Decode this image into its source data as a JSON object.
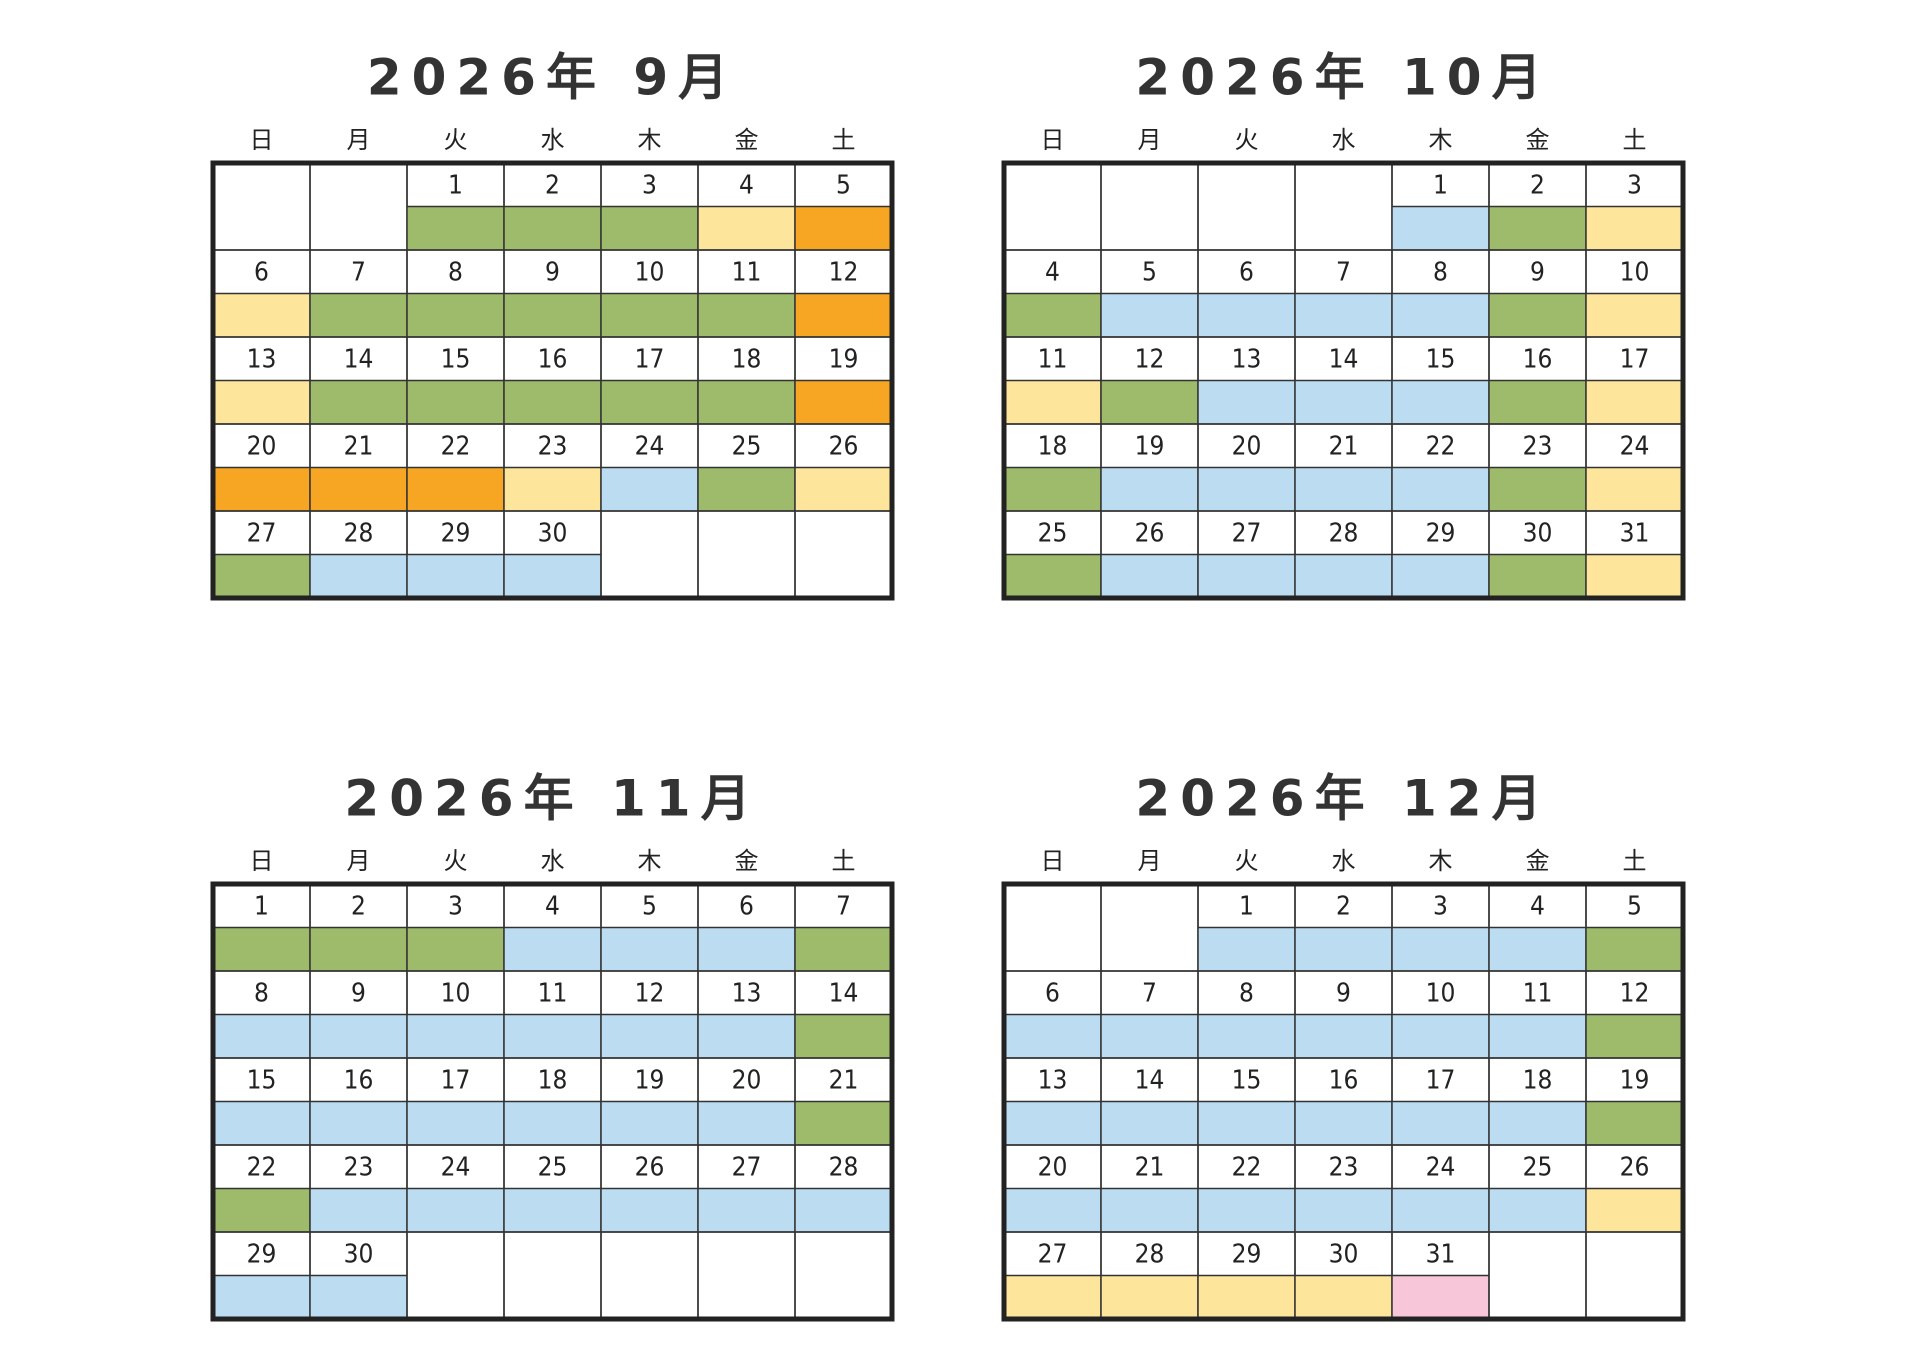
{
  "months": [
    {
      "title": "2026年 9月",
      "weekdays": [
        "日",
        "月",
        "火",
        "水",
        "木",
        "金",
        "土"
      ],
      "weeks": [
        [
          null,
          null,
          {
            "day": 1,
            "fill": "#9dbb6b"
          },
          {
            "day": 2,
            "fill": "#9dbb6b"
          },
          {
            "day": 3,
            "fill": "#9dbb6b"
          },
          {
            "day": 4,
            "fill": "#fde59b"
          },
          {
            "day": 5,
            "fill": "#f6a623",
            "text_color": "#1e88c7"
          }
        ],
        [
          {
            "day": 6,
            "fill": "#fde59b",
            "text_color": "#d7263d"
          },
          {
            "day": 7,
            "fill": "#9dbb6b"
          },
          {
            "day": 8,
            "fill": "#9dbb6b"
          },
          {
            "day": 9,
            "fill": "#9dbb6b"
          },
          {
            "day": 10,
            "fill": "#9dbb6b"
          },
          {
            "day": 11,
            "fill": "#9dbb6b"
          },
          {
            "day": 12,
            "fill": "#f6a623",
            "text_color": "#1e88c7"
          }
        ],
        [
          {
            "day": 13,
            "fill": "#fde59b",
            "text_color": "#d7263d"
          },
          {
            "day": 14,
            "fill": "#9dbb6b"
          },
          {
            "day": 15,
            "fill": "#9dbb6b"
          },
          {
            "day": 16,
            "fill": "#9dbb6b"
          },
          {
            "day": 17,
            "fill": "#9dbb6b"
          },
          {
            "day": 18,
            "fill": "#9dbb6b"
          },
          {
            "day": 19,
            "fill": "#f6a623",
            "text_color": "#1e88c7"
          }
        ],
        [
          {
            "day": 20,
            "fill": "#f6a623",
            "text_color": "#d7263d"
          },
          {
            "day": 21,
            "fill": "#f6a623",
            "text_color": "#d7263d"
          },
          {
            "day": 22,
            "fill": "#f6a623",
            "text_color": "#d7263d"
          },
          {
            "day": 23,
            "fill": "#fde59b",
            "text_color": "#d7263d"
          },
          {
            "day": 24,
            "fill": "#bcdcf1"
          },
          {
            "day": 25,
            "fill": "#9dbb6b"
          },
          {
            "day": 26,
            "fill": "#fde59b",
            "text_color": "#1e88c7"
          }
        ],
        [
          {
            "day": 27,
            "fill": "#9dbb6b",
            "text_color": "#d7263d"
          },
          {
            "day": 28,
            "fill": "#bcdcf1"
          },
          {
            "day": 29,
            "fill": "#bcdcf1"
          },
          {
            "day": 30,
            "fill": "#bcdcf1"
          },
          null,
          null,
          null
        ]
      ]
    },
    {
      "title": "2026年 10月",
      "weekdays": [
        "日",
        "月",
        "火",
        "水",
        "木",
        "金",
        "土"
      ],
      "weeks": [
        [
          null,
          null,
          null,
          null,
          {
            "day": 1,
            "fill": "#bcdcf1"
          },
          {
            "day": 2,
            "fill": "#9dbb6b"
          },
          {
            "day": 3,
            "fill": "#fde59b",
            "text_color": "#1e88c7"
          }
        ],
        [
          {
            "day": 4,
            "fill": "#9dbb6b",
            "text_color": "#d7263d"
          },
          {
            "day": 5,
            "fill": "#bcdcf1"
          },
          {
            "day": 6,
            "fill": "#bcdcf1"
          },
          {
            "day": 7,
            "fill": "#bcdcf1"
          },
          {
            "day": 8,
            "fill": "#bcdcf1"
          },
          {
            "day": 9,
            "fill": "#9dbb6b"
          },
          {
            "day": 10,
            "fill": "#fde59b",
            "text_color": "#1e88c7"
          }
        ],
        [
          {
            "day": 11,
            "fill": "#fde59b",
            "text_color": "#d7263d"
          },
          {
            "day": 12,
            "fill": "#9dbb6b",
            "text_color": "#d7263d"
          },
          {
            "day": 13,
            "fill": "#bcdcf1"
          },
          {
            "day": 14,
            "fill": "#bcdcf1"
          },
          {
            "day": 15,
            "fill": "#bcdcf1"
          },
          {
            "day": 16,
            "fill": "#9dbb6b"
          },
          {
            "day": 17,
            "fill": "#fde59b",
            "text_color": "#1e88c7"
          }
        ],
        [
          {
            "day": 18,
            "fill": "#9dbb6b",
            "text_color": "#d7263d"
          },
          {
            "day": 19,
            "fill": "#bcdcf1"
          },
          {
            "day": 20,
            "fill": "#bcdcf1"
          },
          {
            "day": 21,
            "fill": "#bcdcf1"
          },
          {
            "day": 22,
            "fill": "#bcdcf1"
          },
          {
            "day": 23,
            "fill": "#9dbb6b"
          },
          {
            "day": 24,
            "fill": "#fde59b",
            "text_color": "#1e88c7"
          }
        ],
        [
          {
            "day": 25,
            "fill": "#9dbb6b",
            "text_color": "#d7263d"
          },
          {
            "day": 26,
            "fill": "#bcdcf1"
          },
          {
            "day": 27,
            "fill": "#bcdcf1"
          },
          {
            "day": 28,
            "fill": "#bcdcf1"
          },
          {
            "day": 29,
            "fill": "#bcdcf1"
          },
          {
            "day": 30,
            "fill": "#9dbb6b"
          },
          {
            "day": 31,
            "fill": "#fde59b",
            "text_color": "#1e88c7"
          }
        ]
      ]
    },
    {
      "title": "2026年 11月",
      "weekdays": [
        "日",
        "月",
        "火",
        "水",
        "木",
        "金",
        "土"
      ],
      "weeks": [
        [
          {
            "day": 1,
            "fill": "#9dbb6b",
            "text_color": "#d7263d"
          },
          {
            "day": 2,
            "fill": "#9dbb6b"
          },
          {
            "day": 3,
            "fill": "#9dbb6b",
            "text_color": "#d7263d"
          },
          {
            "day": 4,
            "fill": "#bcdcf1"
          },
          {
            "day": 5,
            "fill": "#bcdcf1"
          },
          {
            "day": 6,
            "fill": "#bcdcf1"
          },
          {
            "day": 7,
            "fill": "#9dbb6b",
            "text_color": "#1e88c7"
          }
        ],
        [
          {
            "day": 8,
            "fill": "#bcdcf1",
            "text_color": "#d7263d"
          },
          {
            "day": 9,
            "fill": "#bcdcf1"
          },
          {
            "day": 10,
            "fill": "#bcdcf1"
          },
          {
            "day": 11,
            "fill": "#bcdcf1"
          },
          {
            "day": 12,
            "fill": "#bcdcf1"
          },
          {
            "day": 13,
            "fill": "#bcdcf1"
          },
          {
            "day": 14,
            "fill": "#9dbb6b",
            "text_color": "#1e88c7"
          }
        ],
        [
          {
            "day": 15,
            "fill": "#bcdcf1",
            "text_color": "#d7263d"
          },
          {
            "day": 16,
            "fill": "#bcdcf1"
          },
          {
            "day": 17,
            "fill": "#bcdcf1"
          },
          {
            "day": 18,
            "fill": "#bcdcf1"
          },
          {
            "day": 19,
            "fill": "#bcdcf1"
          },
          {
            "day": 20,
            "fill": "#bcdcf1"
          },
          {
            "day": 21,
            "fill": "#9dbb6b",
            "text_color": "#1e88c7"
          }
        ],
        [
          {
            "day": 22,
            "fill": "#9dbb6b",
            "text_color": "#d7263d"
          },
          {
            "day": 23,
            "fill": "#bcdcf1",
            "text_color": "#d7263d"
          },
          {
            "day": 24,
            "fill": "#bcdcf1"
          },
          {
            "day": 25,
            "fill": "#bcdcf1"
          },
          {
            "day": 26,
            "fill": "#bcdcf1"
          },
          {
            "day": 27,
            "fill": "#bcdcf1"
          },
          {
            "day": 28,
            "fill": "#bcdcf1",
            "text_color": "#1e88c7"
          }
        ],
        [
          {
            "day": 29,
            "fill": "#bcdcf1",
            "text_color": "#d7263d"
          },
          {
            "day": 30,
            "fill": "#bcdcf1"
          },
          null,
          null,
          null,
          null,
          null
        ]
      ]
    },
    {
      "title": "2026年 12月",
      "weekdays": [
        "日",
        "月",
        "火",
        "水",
        "木",
        "金",
        "土"
      ],
      "weeks": [
        [
          null,
          null,
          {
            "day": 1,
            "fill": "#bcdcf1"
          },
          {
            "day": 2,
            "fill": "#bcdcf1"
          },
          {
            "day": 3,
            "fill": "#bcdcf1"
          },
          {
            "day": 4,
            "fill": "#bcdcf1"
          },
          {
            "day": 5,
            "fill": "#9dbb6b",
            "text_color": "#1e88c7"
          }
        ],
        [
          {
            "day": 6,
            "fill": "#bcdcf1",
            "text_color": "#d7263d"
          },
          {
            "day": 7,
            "fill": "#bcdcf1"
          },
          {
            "day": 8,
            "fill": "#bcdcf1"
          },
          {
            "day": 9,
            "fill": "#bcdcf1"
          },
          {
            "day": 10,
            "fill": "#bcdcf1"
          },
          {
            "day": 11,
            "fill": "#bcdcf1"
          },
          {
            "day": 12,
            "fill": "#9dbb6b",
            "text_color": "#1e88c7"
          }
        ],
        [
          {
            "day": 13,
            "fill": "#bcdcf1",
            "text_color": "#d7263d"
          },
          {
            "day": 14,
            "fill": "#bcdcf1"
          },
          {
            "day": 15,
            "fill": "#bcdcf1"
          },
          {
            "day": 16,
            "fill": "#bcdcf1"
          },
          {
            "day": 17,
            "fill": "#bcdcf1"
          },
          {
            "day": 18,
            "fill": "#bcdcf1"
          },
          {
            "day": 19,
            "fill": "#9dbb6b",
            "text_color": "#1e88c7"
          }
        ],
        [
          {
            "day": 20,
            "fill": "#bcdcf1",
            "text_color": "#d7263d"
          },
          {
            "day": 21,
            "fill": "#bcdcf1"
          },
          {
            "day": 22,
            "fill": "#bcdcf1"
          },
          {
            "day": 23,
            "fill": "#bcdcf1"
          },
          {
            "day": 24,
            "fill": "#bcdcf1"
          },
          {
            "day": 25,
            "fill": "#bcdcf1"
          },
          {
            "day": 26,
            "fill": "#fde59b",
            "text_color": "#1e88c7"
          }
        ],
        [
          {
            "day": 27,
            "fill": "#fde59b",
            "text_color": "#d7263d"
          },
          {
            "day": 28,
            "fill": "#fde59b"
          },
          {
            "day": 29,
            "fill": "#fde59b"
          },
          {
            "day": 30,
            "fill": "#fde59b"
          },
          {
            "day": 31,
            "fill": "#f7c6d8"
          },
          null,
          null
        ]
      ]
    }
  ]
}
